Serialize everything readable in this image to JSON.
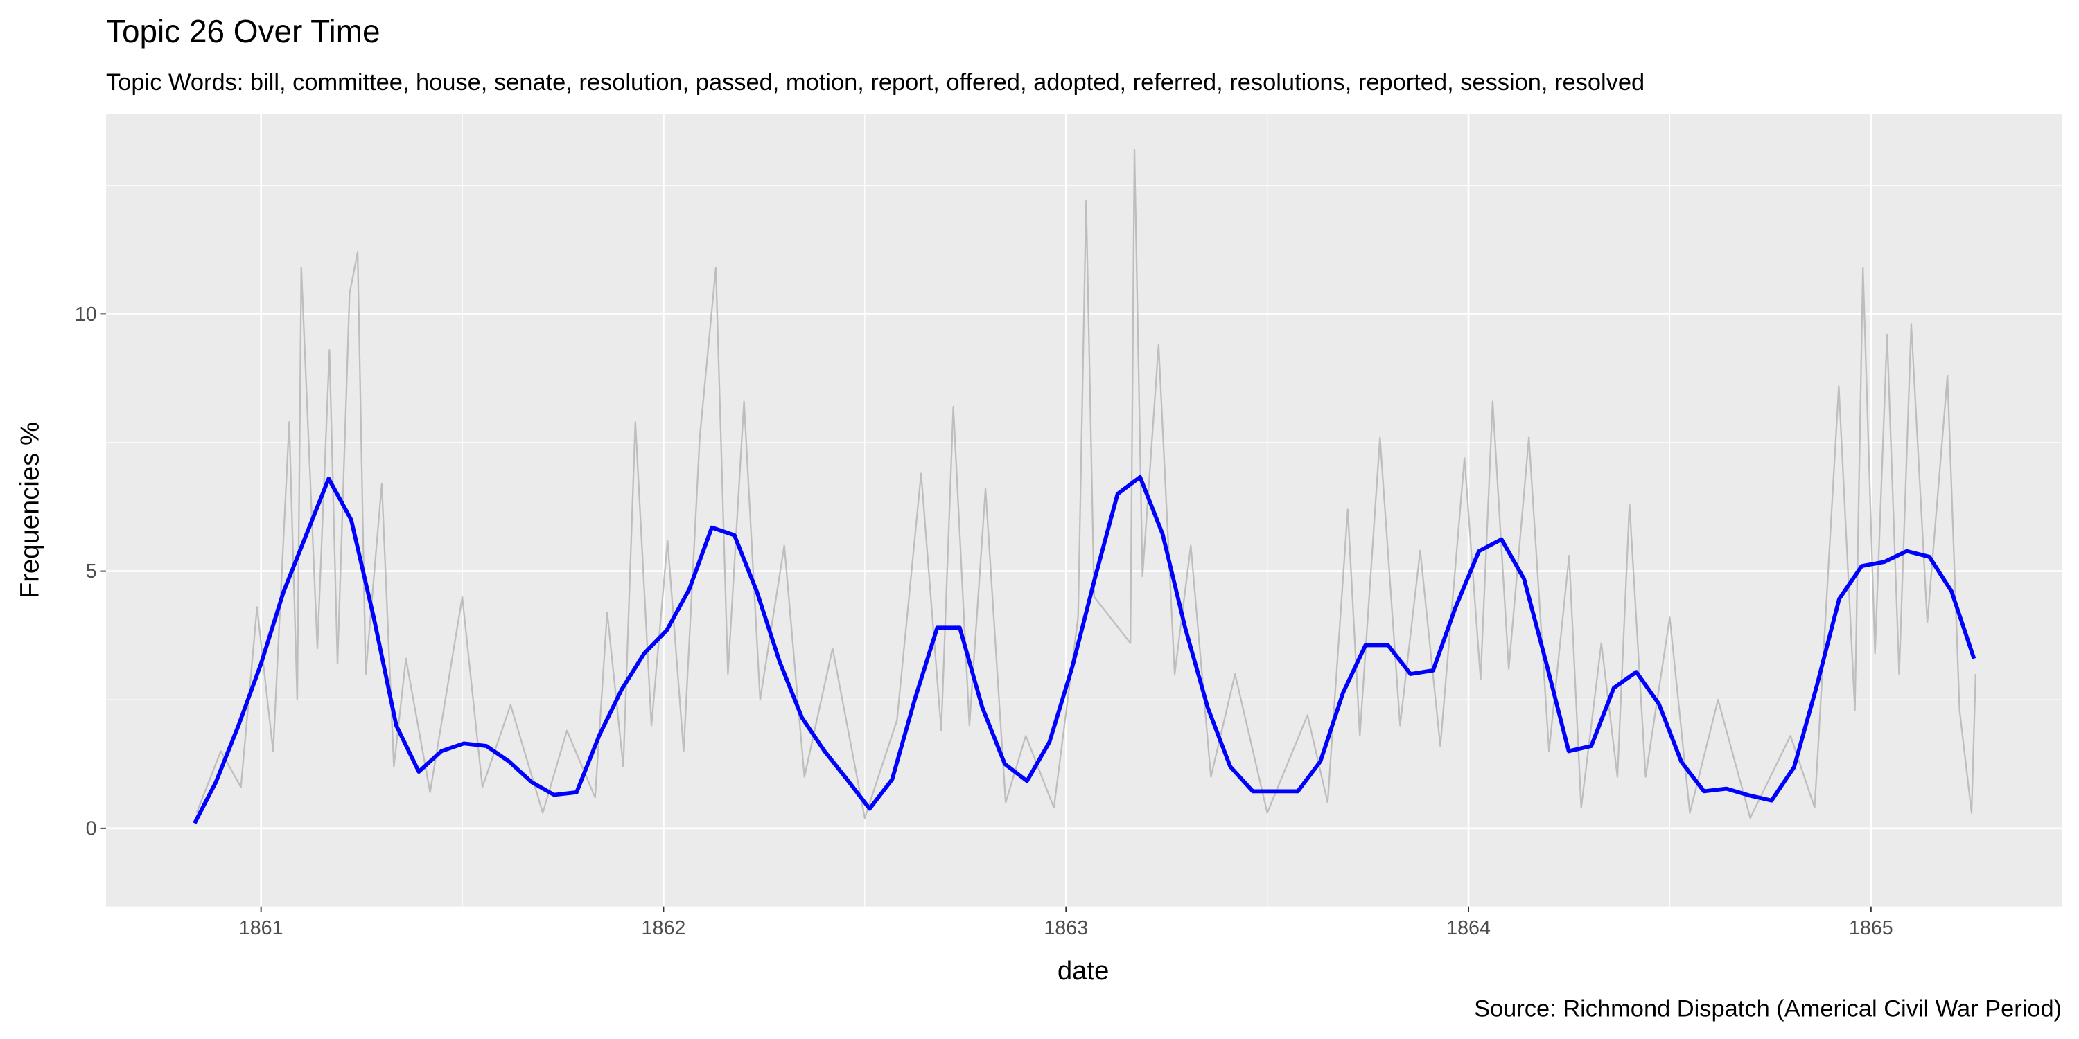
{
  "chart_data": {
    "type": "line",
    "title": "Topic 26 Over Time",
    "subtitle": "Topic Words: bill, committee, house, senate, resolution, passed, motion, report, offered, adopted, referred, resolutions, reported, session, resolved",
    "x_label": "date",
    "y_label": "Frequencies %",
    "caption": "Source: Richmond Dispatch (Americal Civil War Period)",
    "xlim": [
      1860.615,
      1865.474
    ],
    "xticks": [
      1861,
      1862,
      1863,
      1864,
      1865
    ],
    "x_minor_ticks": [
      1861.5,
      1862.5,
      1863.5,
      1864.5
    ],
    "ylim": [
      -1.52,
      13.89
    ],
    "yticks": [
      0,
      5,
      10
    ],
    "y_minor_ticks": [
      2.5,
      7.5,
      12.5
    ],
    "grid": true,
    "series": [
      {
        "color": "#bebebe",
        "line_width": 1.2,
        "x": [
          1860.84,
          1860.9,
          1860.95,
          1860.99,
          1861.03,
          1861.07,
          1861.09,
          1861.1,
          1861.14,
          1861.17,
          1861.19,
          1861.22,
          1861.24,
          1861.26,
          1861.3,
          1861.33,
          1861.36,
          1861.42,
          1861.5,
          1861.55,
          1861.62,
          1861.7,
          1861.76,
          1861.83,
          1861.86,
          1861.9,
          1861.93,
          1861.97,
          1862.01,
          1862.05,
          1862.09,
          1862.13,
          1862.16,
          1862.2,
          1862.24,
          1862.3,
          1862.35,
          1862.42,
          1862.5,
          1862.58,
          1862.64,
          1862.69,
          1862.72,
          1862.76,
          1862.8,
          1862.85,
          1862.9,
          1862.97,
          1863.03,
          1863.05,
          1863.07,
          1863.16,
          1863.17,
          1863.19,
          1863.23,
          1863.27,
          1863.31,
          1863.36,
          1863.42,
          1863.5,
          1863.6,
          1863.65,
          1863.7,
          1863.73,
          1863.78,
          1863.83,
          1863.88,
          1863.93,
          1863.99,
          1864.03,
          1864.06,
          1864.1,
          1864.15,
          1864.2,
          1864.25,
          1864.28,
          1864.33,
          1864.37,
          1864.4,
          1864.44,
          1864.5,
          1864.55,
          1864.62,
          1864.7,
          1864.8,
          1864.86,
          1864.92,
          1864.96,
          1864.98,
          1865.01,
          1865.04,
          1865.07,
          1865.1,
          1865.14,
          1865.19,
          1865.22,
          1865.25,
          1865.26
        ],
        "values": [
          0.3,
          1.5,
          0.8,
          4.3,
          1.5,
          7.9,
          2.5,
          10.9,
          3.5,
          9.3,
          3.2,
          10.4,
          11.2,
          3.0,
          6.7,
          1.2,
          3.3,
          0.7,
          4.5,
          0.8,
          2.4,
          0.3,
          1.9,
          0.6,
          4.2,
          1.2,
          7.9,
          2.0,
          5.6,
          1.5,
          7.6,
          10.9,
          3.0,
          8.3,
          2.5,
          5.5,
          1.0,
          3.5,
          0.2,
          2.1,
          6.9,
          1.9,
          8.2,
          2.0,
          6.6,
          0.5,
          1.8,
          0.4,
          4.1,
          12.2,
          4.5,
          3.6,
          13.2,
          4.9,
          9.4,
          3.0,
          5.5,
          1.0,
          3.0,
          0.3,
          2.2,
          0.5,
          6.2,
          1.8,
          7.6,
          2.0,
          5.4,
          1.6,
          7.2,
          2.9,
          8.3,
          3.1,
          7.6,
          1.5,
          5.3,
          0.4,
          3.6,
          1.0,
          6.3,
          1.0,
          4.1,
          0.3,
          2.5,
          0.2,
          1.8,
          0.4,
          8.6,
          2.3,
          10.9,
          3.4,
          9.6,
          3.0,
          9.8,
          4.0,
          8.8,
          2.3,
          0.3,
          3.0
        ]
      },
      {
        "color": "#0000ff",
        "line_width": 3,
        "x": [
          1860.835,
          1860.888,
          1860.944,
          1861.0,
          1861.056,
          1861.112,
          1861.168,
          1861.224,
          1861.28,
          1861.336,
          1861.392,
          1861.448,
          1861.504,
          1861.56,
          1861.616,
          1861.672,
          1861.728,
          1861.784,
          1861.84,
          1861.896,
          1861.952,
          1862.008,
          1862.064,
          1862.12,
          1862.176,
          1862.232,
          1862.288,
          1862.344,
          1862.4,
          1862.456,
          1862.512,
          1862.568,
          1862.624,
          1862.68,
          1862.736,
          1862.792,
          1862.848,
          1862.903,
          1862.959,
          1863.016,
          1863.072,
          1863.128,
          1863.184,
          1863.24,
          1863.296,
          1863.352,
          1863.408,
          1863.464,
          1863.52,
          1863.576,
          1863.632,
          1863.688,
          1863.744,
          1863.8,
          1863.856,
          1863.912,
          1863.967,
          1864.026,
          1864.082,
          1864.138,
          1864.193,
          1864.249,
          1864.305,
          1864.361,
          1864.417,
          1864.473,
          1864.529,
          1864.585,
          1864.641,
          1864.697,
          1864.753,
          1864.809,
          1864.865,
          1864.921,
          1864.977,
          1865.033,
          1865.089,
          1865.145,
          1865.2,
          1865.256
        ],
        "values": [
          0.1,
          0.9,
          2.0,
          3.2,
          4.6,
          5.7,
          6.8,
          6.0,
          4.1,
          2.0,
          1.1,
          1.5,
          1.65,
          1.6,
          1.3,
          0.9,
          0.65,
          0.7,
          1.8,
          2.7,
          3.4,
          3.85,
          4.65,
          5.85,
          5.7,
          4.6,
          3.25,
          2.15,
          1.5,
          0.95,
          0.38,
          0.95,
          2.5,
          3.9,
          3.9,
          2.35,
          1.25,
          0.92,
          1.68,
          3.15,
          4.87,
          6.5,
          6.83,
          5.72,
          3.9,
          2.35,
          1.2,
          0.72,
          0.72,
          0.72,
          1.3,
          2.63,
          3.56,
          3.56,
          3.0,
          3.07,
          4.28,
          5.39,
          5.62,
          4.85,
          3.22,
          1.5,
          1.6,
          2.73,
          3.04,
          2.42,
          1.29,
          0.72,
          0.77,
          0.64,
          0.54,
          1.19,
          2.76,
          4.46,
          5.1,
          5.18,
          5.39,
          5.28,
          4.61,
          3.3
        ]
      }
    ]
  }
}
